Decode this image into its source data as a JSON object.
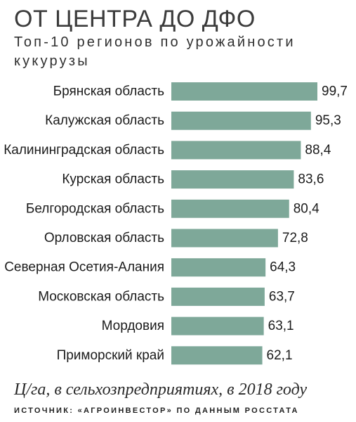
{
  "header": {
    "title": "ОТ ЦЕНТРА ДО ДФО",
    "subtitle": "Топ-10 регионов по урожайности кукурузы"
  },
  "footer": {
    "unit_note": "Ц/га, в сельхозпредприятиях, в 2018 году",
    "source": "ИСТОЧНИК: «АГРОИНВЕСТОР» ПО ДАННЫМ РОССТАТА"
  },
  "colors": {
    "bar": "#7ea899",
    "label": "#1b1b1b"
  },
  "chart_data": {
    "type": "bar",
    "orientation": "horizontal",
    "title": "ОТ ЦЕНТРА ДО ДФО",
    "subtitle": "Топ-10 регионов по урожайности кукурузы",
    "categories": [
      "Брянская область",
      "Калужская область",
      "Калининградская область",
      "Курская область",
      "Белгородская область",
      "Орловская область",
      "Северная Осетия-Алания",
      "Московская область",
      "Мордовия",
      "Приморский край"
    ],
    "values": [
      99.7,
      95.3,
      88.4,
      83.6,
      80.4,
      72.8,
      64.3,
      63.7,
      63.1,
      62.1
    ],
    "value_labels": [
      "99,7",
      "95,3",
      "88,4",
      "83,6",
      "80,4",
      "72,8",
      "64,3",
      "63,7",
      "63,1",
      "62,1"
    ],
    "xlim": [
      0,
      99.7
    ],
    "grid": false,
    "legend": "none"
  }
}
